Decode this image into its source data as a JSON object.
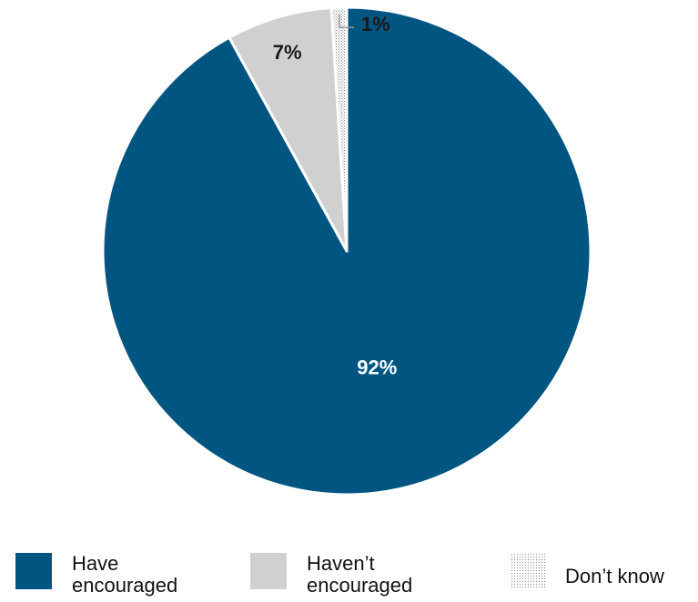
{
  "chart_data": {
    "type": "pie",
    "title": "",
    "slices": [
      {
        "label": "Have encouraged",
        "legend_lines": [
          "Have",
          "encouraged"
        ],
        "value": 92,
        "display": "92%",
        "color": "#005581",
        "pattern": "solid"
      },
      {
        "label": "Haven’t encouraged",
        "legend_lines": [
          "Haven’t",
          "encouraged"
        ],
        "value": 7,
        "display": "7%",
        "color": "#d0d0d0",
        "pattern": "solid"
      },
      {
        "label": "Don’t know",
        "legend_lines": [
          "Don’t know"
        ],
        "value": 1,
        "display": "1%",
        "color": "#bdbdbd",
        "pattern": "dotted"
      }
    ],
    "start_angle": "12 o'clock",
    "direction": "clockwise",
    "legend_position": "bottom"
  }
}
